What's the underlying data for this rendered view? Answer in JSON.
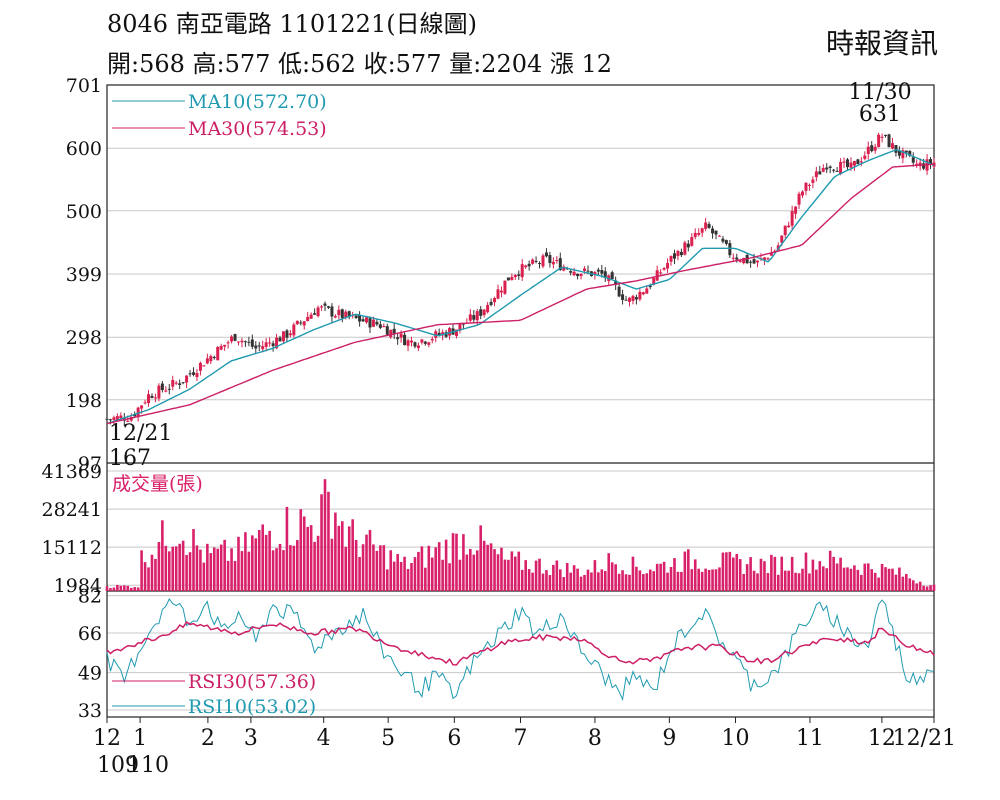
{
  "header": {
    "stock_line": "8046  南亞電路 1101221(日線圖)",
    "summary_line": "開:568 高:577 低:562 收:577 量:2204 漲 12",
    "source": "時報資訊"
  },
  "colors": {
    "up": "#d9204f",
    "down": "#333333",
    "ma10": "#1f9ab0",
    "ma30": "#cc1f66",
    "volume": "#d9206a",
    "grid": "#c8c8c8"
  },
  "chart_data": [
    {
      "type": "candlestick",
      "ylim": [
        97,
        701
      ],
      "yticks": [
        "701",
        "600",
        "500",
        "399",
        "298",
        "198",
        "97"
      ],
      "series": [
        {
          "name": "MA10(572.70)",
          "key": "ma10"
        },
        {
          "name": "MA30(574.53)",
          "key": "ma30"
        }
      ],
      "annotations": [
        {
          "label": "11/30",
          "value": "631",
          "x": 0.937,
          "y": 631
        },
        {
          "label": "12/21",
          "value": "167",
          "x": 0.0,
          "y": 167
        }
      ],
      "close_anchors": [
        [
          0.0,
          167
        ],
        [
          0.03,
          172
        ],
        [
          0.05,
          205
        ],
        [
          0.09,
          228
        ],
        [
          0.12,
          262
        ],
        [
          0.155,
          300
        ],
        [
          0.18,
          280
        ],
        [
          0.215,
          300
        ],
        [
          0.255,
          345
        ],
        [
          0.29,
          330
        ],
        [
          0.33,
          318
        ],
        [
          0.365,
          290
        ],
        [
          0.385,
          295
        ],
        [
          0.42,
          310
        ],
        [
          0.45,
          335
        ],
        [
          0.49,
          400
        ],
        [
          0.53,
          422
        ],
        [
          0.57,
          403
        ],
        [
          0.6,
          398
        ],
        [
          0.63,
          355
        ],
        [
          0.655,
          380
        ],
        [
          0.68,
          420
        ],
        [
          0.725,
          475
        ],
        [
          0.755,
          430
        ],
        [
          0.785,
          415
        ],
        [
          0.81,
          440
        ],
        [
          0.84,
          530
        ],
        [
          0.87,
          575
        ],
        [
          0.9,
          568
        ],
        [
          0.937,
          620
        ],
        [
          0.955,
          595
        ],
        [
          0.98,
          572
        ],
        [
          1.0,
          577
        ]
      ],
      "ma10_anchors": [
        [
          0.0,
          160
        ],
        [
          0.05,
          182
        ],
        [
          0.1,
          215
        ],
        [
          0.15,
          260
        ],
        [
          0.2,
          280
        ],
        [
          0.25,
          310
        ],
        [
          0.3,
          335
        ],
        [
          0.35,
          320
        ],
        [
          0.4,
          300
        ],
        [
          0.45,
          318
        ],
        [
          0.5,
          365
        ],
        [
          0.55,
          410
        ],
        [
          0.6,
          395
        ],
        [
          0.64,
          375
        ],
        [
          0.68,
          390
        ],
        [
          0.72,
          440
        ],
        [
          0.76,
          440
        ],
        [
          0.8,
          418
        ],
        [
          0.84,
          490
        ],
        [
          0.88,
          555
        ],
        [
          0.92,
          580
        ],
        [
          0.955,
          598
        ],
        [
          1.0,
          572.7
        ]
      ],
      "ma30_anchors": [
        [
          0.0,
          160
        ],
        [
          0.1,
          190
        ],
        [
          0.2,
          245
        ],
        [
          0.3,
          290
        ],
        [
          0.4,
          318
        ],
        [
          0.5,
          325
        ],
        [
          0.58,
          375
        ],
        [
          0.64,
          388
        ],
        [
          0.7,
          405
        ],
        [
          0.78,
          425
        ],
        [
          0.84,
          445
        ],
        [
          0.9,
          520
        ],
        [
          0.95,
          570
        ],
        [
          1.0,
          574.53
        ]
      ]
    },
    {
      "type": "bar",
      "title": "成交量(張)",
      "ylim": [
        0,
        41369
      ],
      "yticks": [
        "41369",
        "28241",
        "15112",
        "1984"
      ],
      "peaks": [
        [
          0.04,
          14000
        ],
        [
          0.085,
          30000
        ],
        [
          0.12,
          16000
        ],
        [
          0.16,
          18000
        ],
        [
          0.2,
          28241
        ],
        [
          0.235,
          31000
        ],
        [
          0.245,
          29000
        ],
        [
          0.27,
          41369
        ],
        [
          0.29,
          26000
        ],
        [
          0.36,
          12000
        ],
        [
          0.44,
          25000
        ],
        [
          0.48,
          14000
        ],
        [
          0.58,
          9000
        ],
        [
          0.61,
          14000
        ],
        [
          0.65,
          10000
        ],
        [
          0.7,
          14000
        ],
        [
          0.8,
          12000
        ],
        [
          0.87,
          14000
        ],
        [
          0.95,
          9000
        ],
        [
          1.0,
          2204
        ]
      ]
    },
    {
      "type": "line",
      "ylim": [
        33,
        82
      ],
      "yticks": [
        "82",
        "66",
        "49",
        "33"
      ],
      "series": [
        {
          "name": "RSI30(57.36)",
          "key": "rsi30"
        },
        {
          "name": "RSI10(53.02)",
          "key": "rsi10"
        }
      ],
      "rsi10_anchors": [
        [
          0.0,
          55
        ],
        [
          0.02,
          45
        ],
        [
          0.04,
          60
        ],
        [
          0.06,
          72
        ],
        [
          0.08,
          80
        ],
        [
          0.1,
          70
        ],
        [
          0.12,
          80
        ],
        [
          0.14,
          65
        ],
        [
          0.16,
          75
        ],
        [
          0.18,
          62
        ],
        [
          0.2,
          78
        ],
        [
          0.23,
          72
        ],
        [
          0.25,
          60
        ],
        [
          0.28,
          68
        ],
        [
          0.31,
          74
        ],
        [
          0.33,
          60
        ],
        [
          0.36,
          48
        ],
        [
          0.38,
          42
        ],
        [
          0.4,
          48
        ],
        [
          0.42,
          38
        ],
        [
          0.44,
          52
        ],
        [
          0.46,
          60
        ],
        [
          0.48,
          68
        ],
        [
          0.5,
          76
        ],
        [
          0.52,
          65
        ],
        [
          0.55,
          74
        ],
        [
          0.57,
          60
        ],
        [
          0.6,
          48
        ],
        [
          0.62,
          40
        ],
        [
          0.64,
          48
        ],
        [
          0.66,
          40
        ],
        [
          0.68,
          58
        ],
        [
          0.7,
          68
        ],
        [
          0.72,
          75
        ],
        [
          0.74,
          64
        ],
        [
          0.76,
          55
        ],
        [
          0.78,
          44
        ],
        [
          0.8,
          47
        ],
        [
          0.82,
          56
        ],
        [
          0.84,
          70
        ],
        [
          0.86,
          76
        ],
        [
          0.88,
          72
        ],
        [
          0.9,
          64
        ],
        [
          0.92,
          60
        ],
        [
          0.937,
          82
        ],
        [
          0.95,
          66
        ],
        [
          0.97,
          45
        ],
        [
          0.985,
          48
        ],
        [
          1.0,
          53.02
        ]
      ],
      "rsi30_anchors": [
        [
          0.0,
          58
        ],
        [
          0.06,
          64
        ],
        [
          0.1,
          70
        ],
        [
          0.16,
          66
        ],
        [
          0.2,
          70
        ],
        [
          0.25,
          66
        ],
        [
          0.3,
          68
        ],
        [
          0.35,
          60
        ],
        [
          0.42,
          53
        ],
        [
          0.48,
          62
        ],
        [
          0.52,
          64
        ],
        [
          0.57,
          64
        ],
        [
          0.62,
          54
        ],
        [
          0.66,
          54
        ],
        [
          0.7,
          60
        ],
        [
          0.74,
          60
        ],
        [
          0.78,
          54
        ],
        [
          0.8,
          54
        ],
        [
          0.84,
          60
        ],
        [
          0.88,
          64
        ],
        [
          0.92,
          62
        ],
        [
          0.937,
          68
        ],
        [
          0.96,
          62
        ],
        [
          1.0,
          57.36
        ]
      ]
    }
  ],
  "x_axis": {
    "ticks": [
      {
        "label": "12",
        "x": 0.0
      },
      {
        "label": "1",
        "x": 0.04
      },
      {
        "label": "2",
        "x": 0.122
      },
      {
        "label": "3",
        "x": 0.174
      },
      {
        "label": "4",
        "x": 0.262
      },
      {
        "label": "5",
        "x": 0.34
      },
      {
        "label": "6",
        "x": 0.42
      },
      {
        "label": "7",
        "x": 0.5
      },
      {
        "label": "8",
        "x": 0.59
      },
      {
        "label": "9",
        "x": 0.68
      },
      {
        "label": "10",
        "x": 0.76
      },
      {
        "label": "11",
        "x": 0.85
      },
      {
        "label": "12",
        "x": 0.937
      },
      {
        "label": "12/21",
        "x": 1.0
      }
    ],
    "year_labels": [
      "109",
      "110"
    ]
  }
}
